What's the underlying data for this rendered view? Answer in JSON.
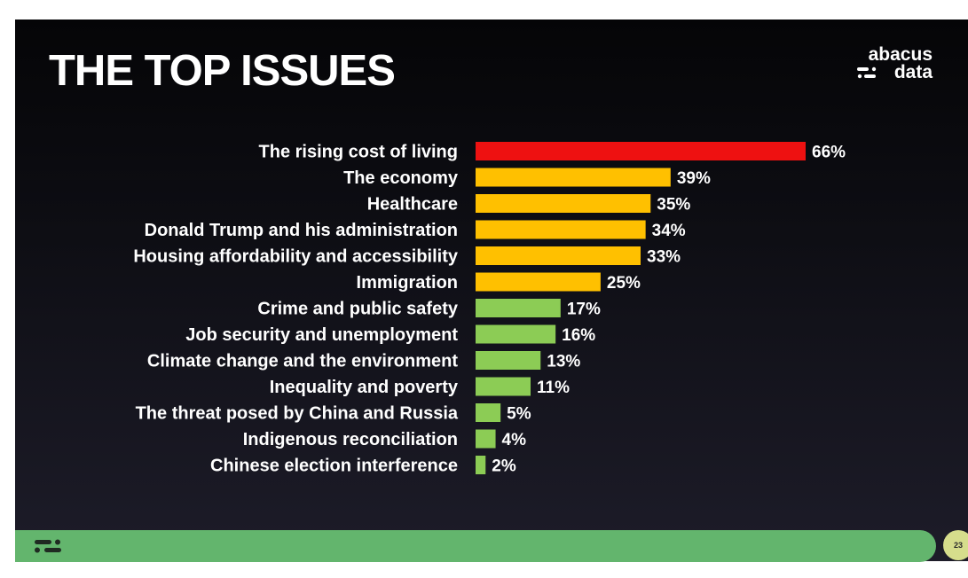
{
  "slide": {
    "title": "THE TOP ISSUES",
    "page_number": "23"
  },
  "logo": {
    "line1": "abacus",
    "line2": "data"
  },
  "colors": {
    "top": "#ee1111",
    "high": "#ffc000",
    "low": "#8ccc55",
    "footer": "#63b56d"
  },
  "chart_data": {
    "type": "bar",
    "orientation": "horizontal",
    "title": "THE TOP ISSUES",
    "xlabel": "",
    "ylabel": "",
    "xlim": [
      0,
      66
    ],
    "value_suffix": "%",
    "categories": [
      "The rising cost of living",
      "The economy",
      "Healthcare",
      "Donald Trump and his administration",
      "Housing affordability and accessibility",
      "Immigration",
      "Crime and public safety",
      "Job security and unemployment",
      "Climate change and the environment",
      "Inequality and poverty",
      "The threat posed by China and Russia",
      "Indigenous reconciliation",
      "Chinese election interference"
    ],
    "values": [
      66,
      39,
      35,
      34,
      33,
      25,
      17,
      16,
      13,
      11,
      5,
      4,
      2
    ],
    "value_labels": [
      "66%",
      "39%",
      "35%",
      "34%",
      "33%",
      "25%",
      "17%",
      "16%",
      "13%",
      "11%",
      "5%",
      "4%",
      "2%"
    ],
    "color_groups": [
      "top",
      "high",
      "high",
      "high",
      "high",
      "high",
      "low",
      "low",
      "low",
      "low",
      "low",
      "low",
      "low"
    ]
  }
}
